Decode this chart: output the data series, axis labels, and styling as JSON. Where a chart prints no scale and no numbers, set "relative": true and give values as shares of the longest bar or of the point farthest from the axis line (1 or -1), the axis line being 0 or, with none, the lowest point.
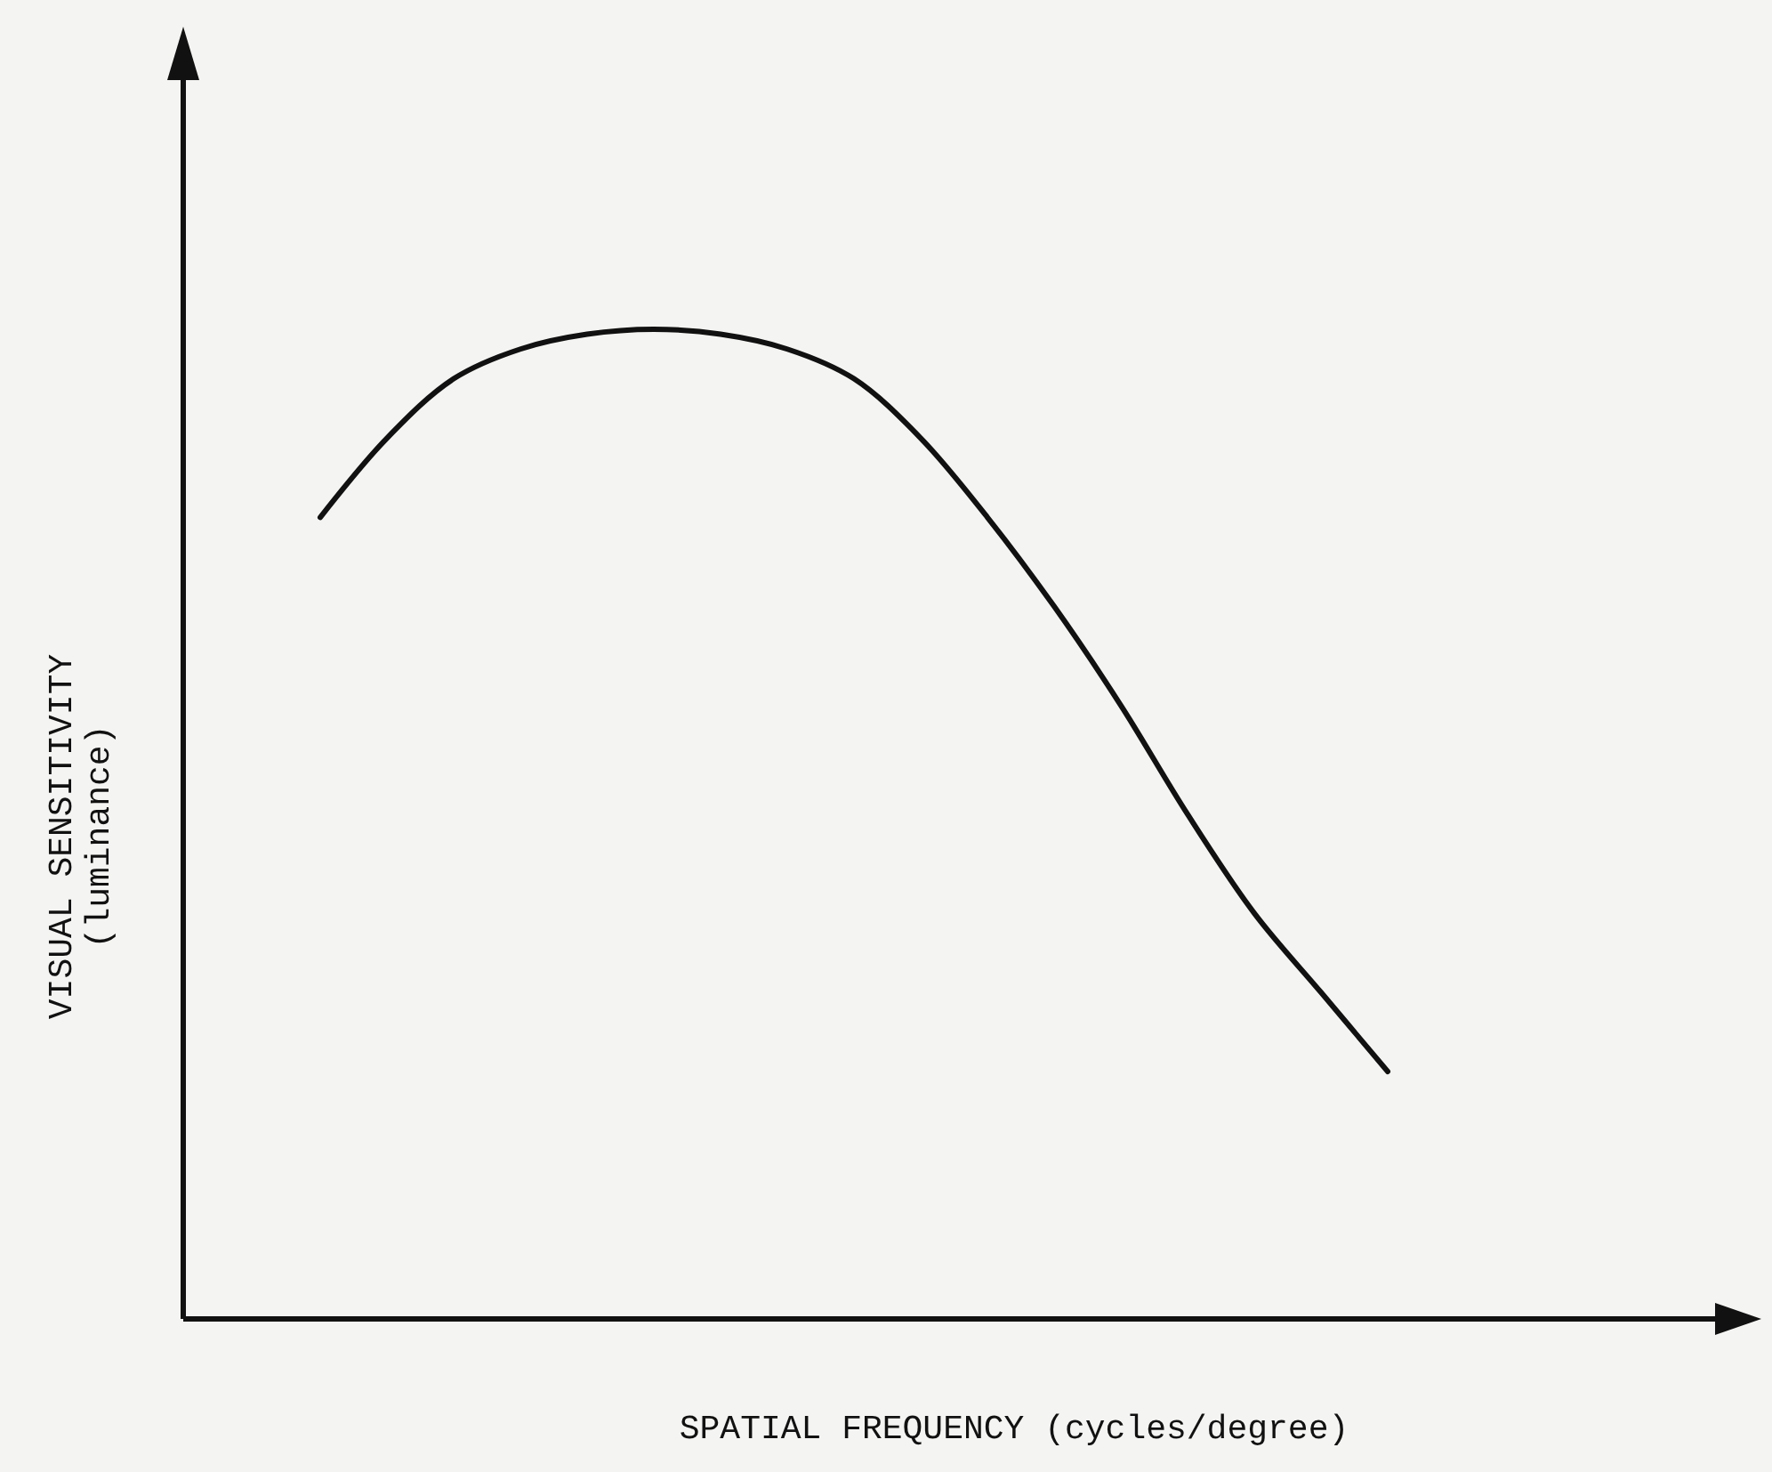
{
  "chart_data": {
    "type": "line",
    "relative": true,
    "xlabel": "SPATIAL FREQUENCY (cycles/degree)",
    "ylabel": "VISUAL SENSITIVITY\n(luminance)",
    "color": "#111111",
    "marker": "none",
    "line_style": "solid",
    "categories": [
      null,
      null,
      null,
      null,
      null,
      null,
      null,
      null,
      null,
      null,
      null,
      null,
      null,
      null,
      null,
      null,
      null,
      null,
      null,
      null,
      null,
      null,
      null,
      null
    ],
    "values": [
      null,
      null,
      0.81,
      0.89,
      0.95,
      0.98,
      0.995,
      1.0,
      0.995,
      0.98,
      0.95,
      0.89,
      0.81,
      0.72,
      0.62,
      0.51,
      0.41,
      0.33,
      0.25,
      null,
      null,
      null,
      null,
      null
    ]
  }
}
